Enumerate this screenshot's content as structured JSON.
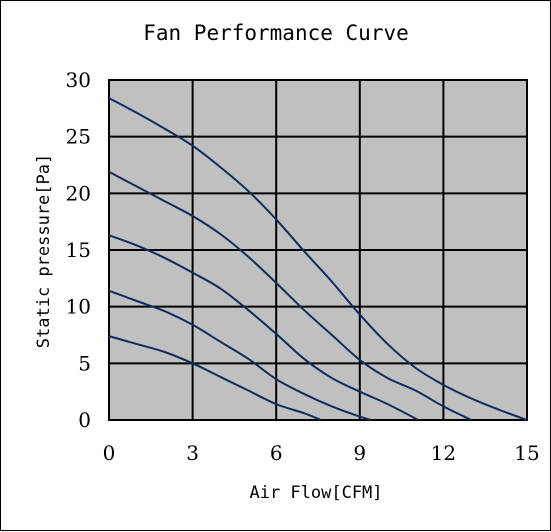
{
  "chart_data": {
    "type": "line",
    "title": "Fan Performance Curve",
    "xlabel": "Air Flow[CFM]",
    "ylabel": "Static pressure[Pa]",
    "xlim": [
      0,
      15
    ],
    "ylim": [
      0,
      30
    ],
    "x_ticks": [
      "0",
      "3",
      "6",
      "9",
      "12",
      "15"
    ],
    "y_ticks": [
      "0",
      "5",
      "10",
      "15",
      "20",
      "25",
      "30"
    ],
    "grid": true,
    "legend": "none",
    "colors": {
      "plot_background": "#c0c0c0",
      "line": "#0d2d5e",
      "grid": "#000000"
    },
    "series": [
      {
        "x": [
          0,
          1,
          2,
          3,
          4,
          5,
          6,
          7,
          8,
          9,
          10,
          11,
          12,
          13,
          14,
          15
        ],
        "y": [
          28.4,
          27.1,
          25.7,
          24.2,
          22.3,
          20.2,
          17.7,
          14.9,
          12.2,
          9.3,
          6.7,
          4.6,
          3.1,
          1.9,
          0.9,
          0
        ]
      },
      {
        "x": [
          0,
          1,
          2,
          3,
          4,
          5,
          6,
          7,
          8,
          9,
          10,
          11,
          12,
          13
        ],
        "y": [
          21.9,
          20.6,
          19.3,
          18.0,
          16.4,
          14.4,
          12.1,
          9.7,
          7.5,
          5.3,
          3.7,
          2.6,
          1.2,
          0
        ]
      },
      {
        "x": [
          0,
          1,
          2,
          3,
          4,
          5,
          6,
          7,
          8,
          9,
          10,
          11.1
        ],
        "y": [
          16.3,
          15.4,
          14.3,
          13.0,
          11.6,
          9.7,
          7.6,
          5.4,
          3.7,
          2.5,
          1.4,
          0
        ]
      },
      {
        "x": [
          0,
          1,
          2,
          3,
          4,
          5,
          6,
          7,
          8,
          9,
          9.4
        ],
        "y": [
          11.4,
          10.5,
          9.6,
          8.4,
          6.9,
          5.4,
          3.6,
          2.3,
          1.2,
          0.3,
          0
        ]
      },
      {
        "x": [
          0,
          1,
          2,
          3,
          4,
          5,
          6,
          7,
          7.6
        ],
        "y": [
          7.4,
          6.7,
          6.0,
          5.0,
          3.8,
          2.6,
          1.4,
          0.6,
          0
        ]
      }
    ]
  }
}
